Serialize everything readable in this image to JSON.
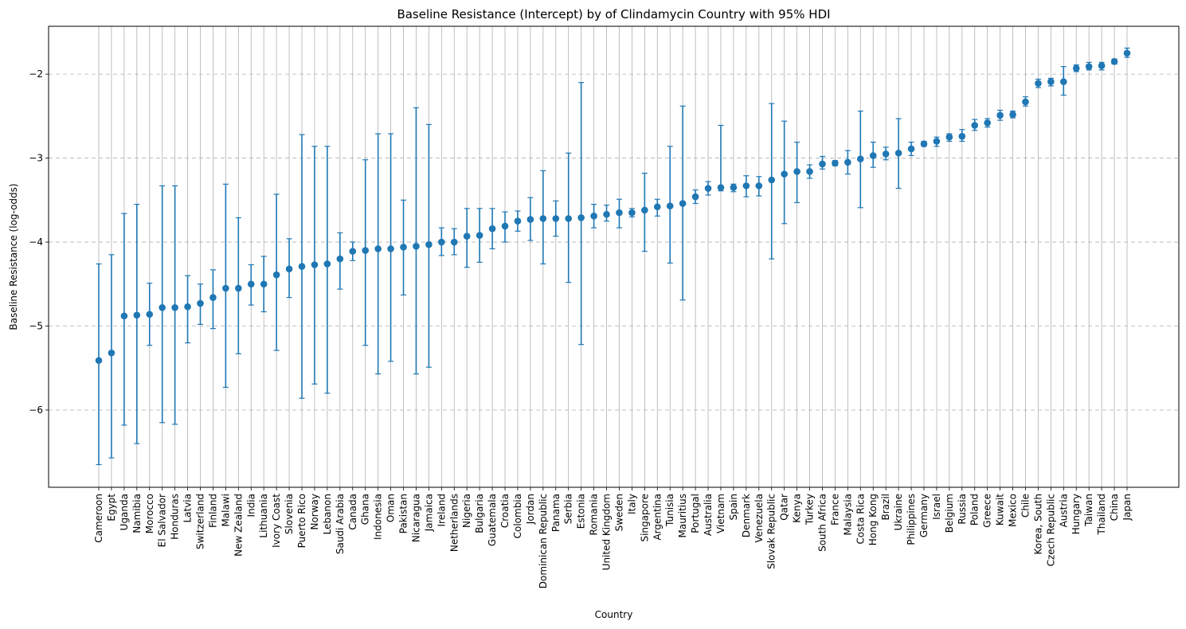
{
  "chart_data": {
    "type": "scatter",
    "title": "Baseline Resistance (Intercept) by of Clindamycin Country with 95% HDI",
    "xlabel": "Country",
    "ylabel": "Baseline Resistance (log-odds)",
    "ylim": [
      -6.92,
      -1.43
    ],
    "yticks": [
      -6,
      -5,
      -4,
      -3,
      -2
    ],
    "ytick_labels": [
      "−6",
      "−5",
      "−4",
      "−3",
      "−2"
    ],
    "grid": {
      "x": "solid",
      "y": "dashed"
    },
    "colors": {
      "series": "#1f77b4",
      "grid": "#b0b0b0"
    },
    "categories": [
      "Cameroon",
      "Egypt",
      "Uganda",
      "Namibia",
      "Morocco",
      "El Salvador",
      "Honduras",
      "Latvia",
      "Switzerland",
      "Finland",
      "Malawi",
      "New Zealand",
      "India",
      "Lithuania",
      "Ivory Coast",
      "Slovenia",
      "Puerto Rico",
      "Norway",
      "Lebanon",
      "Saudi Arabia",
      "Canada",
      "Ghana",
      "Indonesia",
      "Oman",
      "Pakistan",
      "Nicaragua",
      "Jamaica",
      "Ireland",
      "Netherlands",
      "Nigeria",
      "Bulgaria",
      "Guatemala",
      "Croatia",
      "Colombia",
      "Jordan",
      "Dominican Republic",
      "Panama",
      "Serbia",
      "Estonia",
      "Romania",
      "United Kingdom",
      "Sweden",
      "Italy",
      "Singapore",
      "Argentina",
      "Tunisia",
      "Mauritius",
      "Portugal",
      "Australia",
      "Vietnam",
      "Spain",
      "Denmark",
      "Venezuela",
      "Slovak Republic",
      "Qatar",
      "Kenya",
      "Turkey",
      "South Africa",
      "France",
      "Malaysia",
      "Costa Rica",
      "Hong Kong",
      "Brazil",
      "Ukraine",
      "Philippines",
      "Germany",
      "Israel",
      "Belgium",
      "Russia",
      "Poland",
      "Greece",
      "Kuwait",
      "Mexico",
      "Chile",
      "Korea, South",
      "Czech Republic",
      "Austria",
      "Hungary",
      "Taiwan",
      "Thailand",
      "China",
      "Japan"
    ],
    "series": [
      {
        "values": [
          -5.41,
          -5.32,
          -4.88,
          -4.87,
          -4.86,
          -4.78,
          -4.78,
          -4.77,
          -4.73,
          -4.66,
          -4.55,
          -4.55,
          -4.5,
          -4.5,
          -4.39,
          -4.32,
          -4.29,
          -4.27,
          -4.26,
          -4.2,
          -4.11,
          -4.1,
          -4.08,
          -4.08,
          -4.06,
          -4.05,
          -4.03,
          -4.0,
          -4.0,
          -3.93,
          -3.92,
          -3.84,
          -3.81,
          -3.75,
          -3.73,
          -3.72,
          -3.72,
          -3.72,
          -3.71,
          -3.69,
          -3.67,
          -3.65,
          -3.65,
          -3.62,
          -3.58,
          -3.57,
          -3.54,
          -3.46,
          -3.36,
          -3.35,
          -3.35,
          -3.33,
          -3.33,
          -3.26,
          -3.19,
          -3.16,
          -3.16,
          -3.07,
          -3.06,
          -3.05,
          -3.01,
          -2.97,
          -2.95,
          -2.94,
          -2.89,
          -2.83,
          -2.8,
          -2.75,
          -2.74,
          -2.61,
          -2.58,
          -2.49,
          -2.48,
          -2.33,
          -2.11,
          -2.09,
          -2.09,
          -1.93,
          -1.91,
          -1.9,
          -1.85,
          -1.75
        ],
        "lower": [
          -6.65,
          -6.57,
          -6.18,
          -6.4,
          -5.23,
          -6.15,
          -6.17,
          -5.2,
          -4.98,
          -5.03,
          -5.73,
          -5.33,
          -4.75,
          -4.83,
          -5.29,
          -4.66,
          -5.86,
          -5.69,
          -5.8,
          -4.56,
          -4.22,
          -5.23,
          -5.57,
          -5.42,
          -4.63,
          -5.57,
          -5.49,
          -4.16,
          -4.15,
          -4.3,
          -4.24,
          -4.08,
          -4.0,
          -3.87,
          -3.98,
          -4.26,
          -3.93,
          -4.48,
          -5.22,
          -3.83,
          -3.75,
          -3.83,
          -3.7,
          -4.11,
          -3.69,
          -4.25,
          -4.69,
          -3.54,
          -3.44,
          -3.39,
          -3.4,
          -3.46,
          -3.45,
          -4.2,
          -3.78,
          -3.53,
          -3.24,
          -3.13,
          -3.09,
          -3.19,
          -3.59,
          -3.11,
          -3.02,
          -3.36,
          -2.97,
          -2.86,
          -2.86,
          -2.8,
          -2.8,
          -2.67,
          -2.63,
          -2.55,
          -2.52,
          -2.38,
          -2.16,
          -2.14,
          -2.25,
          -1.97,
          -1.95,
          -1.95,
          -1.88,
          -1.8
        ],
        "upper": [
          -4.26,
          -4.15,
          -3.66,
          -3.55,
          -4.49,
          -3.33,
          -3.33,
          -4.4,
          -4.5,
          -4.33,
          -3.31,
          -3.71,
          -4.27,
          -4.17,
          -3.43,
          -3.96,
          -2.72,
          -2.86,
          -2.86,
          -3.89,
          -4.0,
          -3.02,
          -2.71,
          -2.71,
          -3.5,
          -2.4,
          -2.6,
          -3.83,
          -3.84,
          -3.6,
          -3.6,
          -3.6,
          -3.64,
          -3.63,
          -3.47,
          -3.15,
          -3.51,
          -2.94,
          -2.1,
          -3.55,
          -3.56,
          -3.49,
          -3.6,
          -3.18,
          -3.49,
          -2.86,
          -2.38,
          -3.38,
          -3.28,
          -2.61,
          -3.31,
          -3.21,
          -3.22,
          -2.35,
          -2.56,
          -2.81,
          -3.08,
          -2.98,
          -3.03,
          -2.91,
          -2.44,
          -2.81,
          -2.87,
          -2.53,
          -2.81,
          -2.8,
          -2.75,
          -2.71,
          -2.66,
          -2.54,
          -2.53,
          -2.43,
          -2.44,
          -2.27,
          -2.06,
          -2.05,
          -1.91,
          -1.89,
          -1.86,
          -1.86,
          -1.82,
          -1.69
        ]
      }
    ]
  }
}
